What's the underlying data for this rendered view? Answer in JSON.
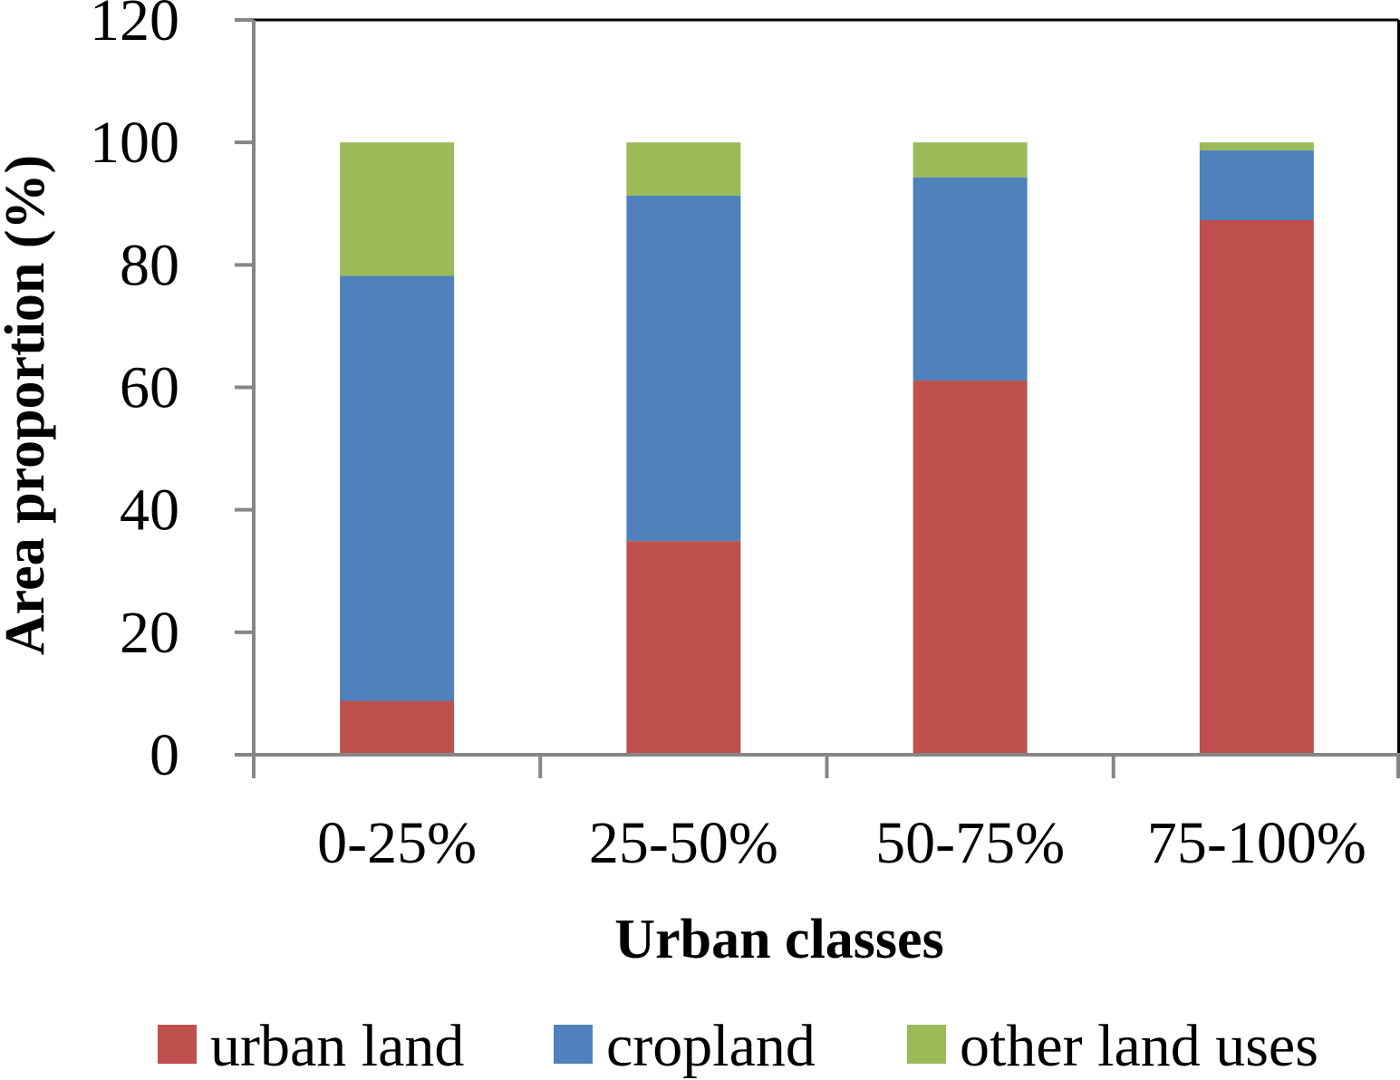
{
  "chart_data": {
    "type": "bar",
    "stacked": true,
    "title": "",
    "xlabel": "Urban classes",
    "ylabel": "Area proportion (%)",
    "ylim": [
      0,
      120
    ],
    "yticks": [
      0,
      20,
      40,
      60,
      80,
      100,
      120
    ],
    "ytick_labels": [
      "0",
      "20",
      "40",
      "60",
      "80",
      "100",
      "120"
    ],
    "categories": [
      "0-25%",
      "25-50%",
      "50-75%",
      "75-100%"
    ],
    "series": [
      {
        "name": "urban land",
        "color": "#c0504d",
        "values": [
          8.8,
          34.9,
          61.1,
          87.3
        ]
      },
      {
        "name": "cropland",
        "color": "#4f81bd",
        "values": [
          69.4,
          56.4,
          33.2,
          11.4
        ]
      },
      {
        "name": "other land uses",
        "color": "#9bbb59",
        "values": [
          21.8,
          8.7,
          5.7,
          1.3
        ]
      }
    ],
    "legend_position": "bottom",
    "grid": false
  }
}
